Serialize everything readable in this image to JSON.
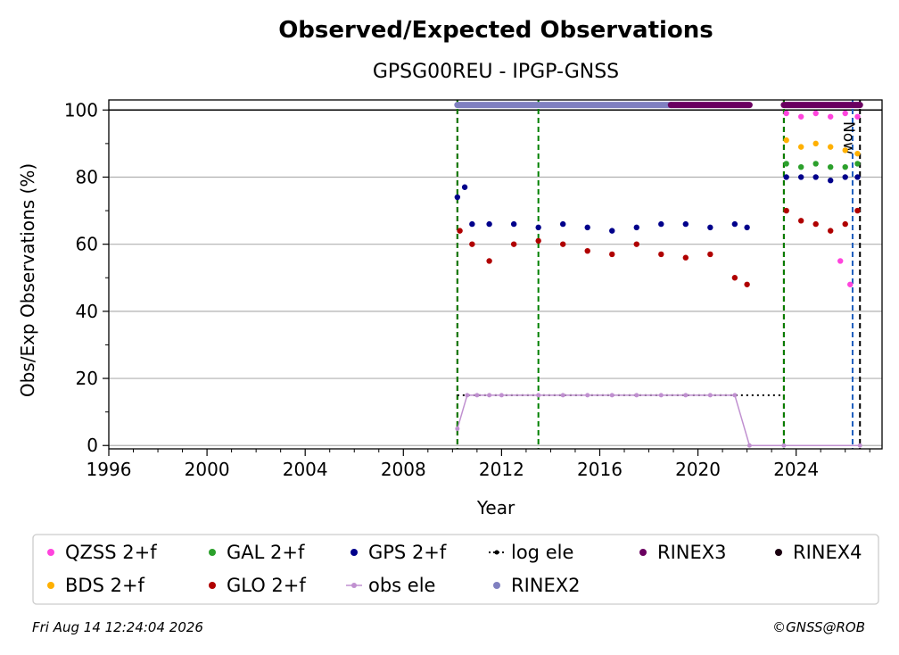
{
  "chart_data": {
    "type": "scatter",
    "title": "Observed/Expected Observations",
    "subtitle": "GPSG00REU - IPGP-GNSS",
    "xlabel": "Year",
    "ylabel": "Obs/Exp Observations (%)",
    "xlim": [
      1996,
      2027.5
    ],
    "ylim": [
      -1,
      103
    ],
    "x_ticks": [
      1996,
      2000,
      2004,
      2008,
      2012,
      2016,
      2020,
      2024
    ],
    "x_tick_labels": [
      "1996",
      "2000",
      "2004",
      "2008",
      "2012",
      "2016",
      "2020",
      "2024"
    ],
    "y_ticks": [
      0,
      20,
      40,
      60,
      80,
      100
    ],
    "y_tick_labels": [
      "0",
      "20",
      "40",
      "60",
      "80",
      "100"
    ],
    "grid": "horizontal",
    "reference_line_y": 100,
    "now_label": "Now",
    "now_x": 2026.6,
    "legend_position": "below",
    "series": [
      {
        "name": "QZSS 2+f",
        "color": "#ff44dd",
        "marker": "dot",
        "x": [
          2023.6,
          2024.2,
          2024.8,
          2025.4,
          2026.0,
          2026.5,
          2025.8,
          2026.2
        ],
        "y": [
          99,
          98,
          99,
          98,
          99,
          98,
          55,
          48
        ]
      },
      {
        "name": "BDS 2+f",
        "color": "#ffb000",
        "marker": "dot",
        "x": [
          2023.6,
          2024.2,
          2024.8,
          2025.4,
          2026.0,
          2026.5
        ],
        "y": [
          91,
          89,
          90,
          89,
          88,
          87
        ]
      },
      {
        "name": "GAL 2+f",
        "color": "#2ca02c",
        "marker": "dot",
        "x": [
          2023.6,
          2024.2,
          2024.8,
          2025.4,
          2026.0,
          2026.5
        ],
        "y": [
          84,
          83,
          84,
          83,
          83,
          84
        ]
      },
      {
        "name": "GLO 2+f",
        "color": "#b00000",
        "marker": "dot",
        "x": [
          2010.3,
          2010.8,
          2011.5,
          2012.5,
          2013.5,
          2014.5,
          2015.5,
          2016.5,
          2017.5,
          2018.5,
          2019.5,
          2020.5,
          2021.5,
          2022.0,
          2023.6,
          2024.2,
          2024.8,
          2025.4,
          2026.0,
          2026.5
        ],
        "y": [
          64,
          60,
          55,
          60,
          61,
          60,
          58,
          57,
          60,
          57,
          56,
          57,
          50,
          48,
          70,
          67,
          66,
          64,
          66,
          70
        ]
      },
      {
        "name": "GPS 2+f",
        "color": "#00008b",
        "marker": "dot",
        "x": [
          2010.2,
          2010.5,
          2010.8,
          2011.5,
          2012.5,
          2013.5,
          2014.5,
          2015.5,
          2016.5,
          2017.5,
          2018.5,
          2019.5,
          2020.5,
          2021.5,
          2022.0,
          2023.6,
          2024.2,
          2024.8,
          2025.4,
          2026.0,
          2026.5
        ],
        "y": [
          74,
          77,
          66,
          66,
          66,
          65,
          66,
          65,
          64,
          65,
          66,
          66,
          65,
          66,
          65,
          80,
          80,
          80,
          79,
          80,
          80
        ]
      },
      {
        "name": "log ele",
        "color": "#000000",
        "marker": "dotted-line",
        "x": [
          2010.2,
          2023.5
        ],
        "y": [
          15,
          15
        ]
      },
      {
        "name": "obs ele",
        "color": "#c090d0",
        "marker": "line",
        "x": [
          2010.2,
          2010.6,
          2011.0,
          2011.5,
          2012.0,
          2013.5,
          2014.5,
          2015.5,
          2016.5,
          2017.5,
          2018.5,
          2019.5,
          2020.5,
          2021.5,
          2022.1,
          2023.5,
          2026.6
        ],
        "y": [
          5,
          15,
          15,
          15,
          15,
          15,
          15,
          15,
          15,
          15,
          15,
          15,
          15,
          15,
          0,
          0,
          0
        ]
      },
      {
        "name": "RINEX2",
        "color": "#8080c0",
        "marker": "band",
        "x": [
          2010.2,
          2018.9
        ],
        "y": [
          101.5,
          101.5
        ]
      },
      {
        "name": "RINEX3",
        "color": "#6a0060",
        "marker": "band",
        "x": [
          2018.9,
          2022.1,
          2023.5,
          2026.6
        ],
        "y": [
          101.5,
          101.5,
          101.5,
          101.5
        ]
      },
      {
        "name": "RINEX4",
        "color": "#1a0010",
        "marker": "dot",
        "x": [],
        "y": []
      }
    ],
    "vertical_lines": [
      {
        "x": 2010.2,
        "color": "#b00000",
        "style": "dashed"
      },
      {
        "x": 2010.2,
        "color": "#008000",
        "style": "dashed"
      },
      {
        "x": 2013.5,
        "color": "#008000",
        "style": "dashed"
      },
      {
        "x": 2023.5,
        "color": "#b00000",
        "style": "dashed"
      },
      {
        "x": 2023.5,
        "color": "#008000",
        "style": "dashed"
      },
      {
        "x": 2026.3,
        "color": "#1f5fbf",
        "style": "dashed"
      },
      {
        "x": 2026.6,
        "color": "#000000",
        "style": "dashed"
      }
    ]
  },
  "legend_rows": [
    [
      "QZSS 2+f",
      "GAL 2+f",
      "GPS 2+f",
      "log ele",
      "RINEX3",
      "RINEX4"
    ],
    [
      "BDS 2+f",
      "GLO 2+f",
      "obs ele",
      "RINEX2"
    ]
  ],
  "footer": {
    "timestamp": "Fri Aug 14 12:24:04 2026",
    "credit": "©GNSS@ROB"
  }
}
